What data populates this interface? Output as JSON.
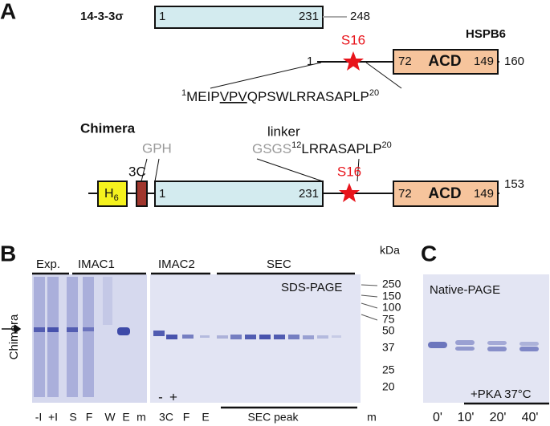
{
  "panel_a": {
    "label": "A",
    "protein_1433": {
      "name": "14-3-3σ",
      "start": 1,
      "domain_end": 231,
      "end": 248
    },
    "hspb6": {
      "name": "HSPB6",
      "site": "S16",
      "start": 1,
      "acd_start": 72,
      "acd": "ACD",
      "acd_end": 149,
      "end": 160,
      "sequence": {
        "start_num": 1,
        "part1": "MEIP",
        "underlined": "VPV",
        "part2": "QPSWLRRASAPLP",
        "end_num": 20
      }
    },
    "chimera": {
      "name": "Chimera",
      "tag": "H",
      "tag_sub": 6,
      "protease_site": "3C",
      "scar": "GPH",
      "linker_label": "linker",
      "linker": "GSGS",
      "seq_start_num": 12,
      "seq": "LRRASAPLP",
      "seq_end_num": 20,
      "site": "S16",
      "start": 1,
      "domain_end": 231,
      "acd_start": 72,
      "acd": "ACD",
      "acd_end": 149,
      "end": 153
    }
  },
  "panel_b": {
    "label": "B",
    "groups": [
      "Exp.",
      "IMAC1",
      "IMAC2",
      "SEC"
    ],
    "gel_label": "SDS-PAGE",
    "band_label": "Chimera",
    "protease_lanes": [
      "-",
      "+"
    ],
    "marker_unit": "kDa",
    "markers": [
      250,
      150,
      100,
      75,
      50,
      37,
      25,
      20
    ],
    "lanes_left": [
      "-I",
      "+I",
      "S",
      "F",
      "W",
      "E",
      "m"
    ],
    "lanes_right": [
      "3C",
      "F",
      "E"
    ],
    "sec_lanes": "SEC peak",
    "marker_lane": "m"
  },
  "panel_c": {
    "label": "C",
    "gel_label": "Native-PAGE",
    "treatment": "+PKA 37°C",
    "lanes": [
      "0'",
      "10'",
      "20'",
      "40'"
    ]
  }
}
